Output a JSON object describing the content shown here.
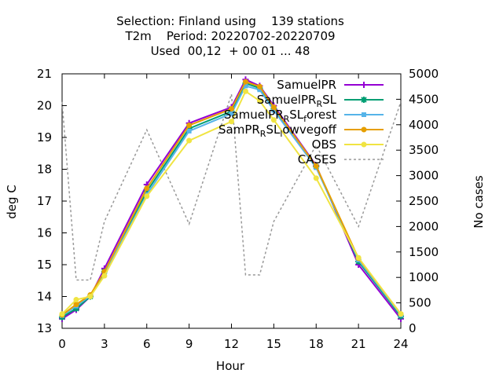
{
  "chart_data": {
    "type": "line",
    "title_lines": [
      "Selection: Finland using    139 stations",
      "T2m    Period: 20220702-20220709",
      "Used  00,12  + 00 01 ... 48"
    ],
    "xlabel": "Hour",
    "ylabel": "deg C",
    "y2label": "No cases",
    "xlim": [
      0,
      24
    ],
    "ylim": [
      13,
      21
    ],
    "y2lim": [
      0,
      5000
    ],
    "xticks": [
      0,
      3,
      6,
      9,
      12,
      15,
      18,
      21,
      24
    ],
    "yticks": [
      13,
      14,
      15,
      16,
      17,
      18,
      19,
      20,
      21
    ],
    "y2ticks": [
      0,
      500,
      1000,
      1500,
      2000,
      2500,
      3000,
      3500,
      4000,
      4500,
      5000
    ],
    "grid": false,
    "legend_position": "top-right",
    "x": [
      0,
      1,
      2,
      3,
      6,
      9,
      12,
      13,
      14,
      15,
      18,
      21,
      24
    ],
    "series": [
      {
        "name": "SamuelPR",
        "legend": {
          "base": "SamuelPR",
          "sub": "",
          "suffix": ""
        },
        "color": "#9400d3",
        "marker": "plus",
        "values": [
          13.3,
          13.58,
          14.0,
          14.88,
          17.52,
          19.45,
          19.95,
          20.82,
          20.62,
          20.0,
          18.12,
          15.0,
          13.3
        ]
      },
      {
        "name": "SamuelPR_RSL",
        "legend": {
          "base": "SamuelPR",
          "sub": "R",
          "suffix": "SL"
        },
        "color": "#009e73",
        "marker": "star",
        "values": [
          13.35,
          13.62,
          14.0,
          14.78,
          17.3,
          19.28,
          19.82,
          20.7,
          20.55,
          19.9,
          18.08,
          15.1,
          13.38
        ]
      },
      {
        "name": "SamuelPR_RSL_forest",
        "legend": {
          "base": "SamuelPR",
          "sub": "R",
          "suffix": "SL",
          "sub2": "f",
          "suffix2": "orest"
        },
        "color": "#56b4e9",
        "marker": "box",
        "values": [
          13.4,
          13.7,
          14.02,
          14.72,
          17.2,
          19.2,
          19.75,
          20.62,
          20.5,
          19.85,
          18.05,
          15.15,
          13.42
        ]
      },
      {
        "name": "SamPR_RSL_lowvegoff",
        "legend": {
          "base": "SamPR",
          "sub": "R",
          "suffix": "SL",
          "sub2": "l",
          "suffix2": "owvegoff"
        },
        "color": "#e69f00",
        "marker": "circle",
        "values": [
          13.42,
          13.75,
          14.05,
          14.78,
          17.4,
          19.38,
          19.9,
          20.75,
          20.6,
          19.95,
          18.1,
          15.2,
          13.45
        ]
      },
      {
        "name": "OBS",
        "legend": {
          "base": "OBS",
          "sub": "",
          "suffix": ""
        },
        "color": "#f0e442",
        "marker": "circle",
        "values": [
          13.45,
          13.9,
          14.0,
          14.65,
          17.15,
          18.9,
          19.5,
          20.45,
          20.15,
          19.55,
          17.72,
          15.22,
          13.45
        ]
      }
    ],
    "cases": {
      "name": "CASES",
      "color": "#999999",
      "x": [
        0,
        1,
        2,
        3,
        6,
        9,
        12,
        13,
        14,
        15,
        18,
        21,
        24
      ],
      "values": [
        4450,
        950,
        950,
        2100,
        3900,
        2050,
        4600,
        1050,
        1050,
        2100,
        3600,
        2000,
        4450
      ]
    }
  }
}
